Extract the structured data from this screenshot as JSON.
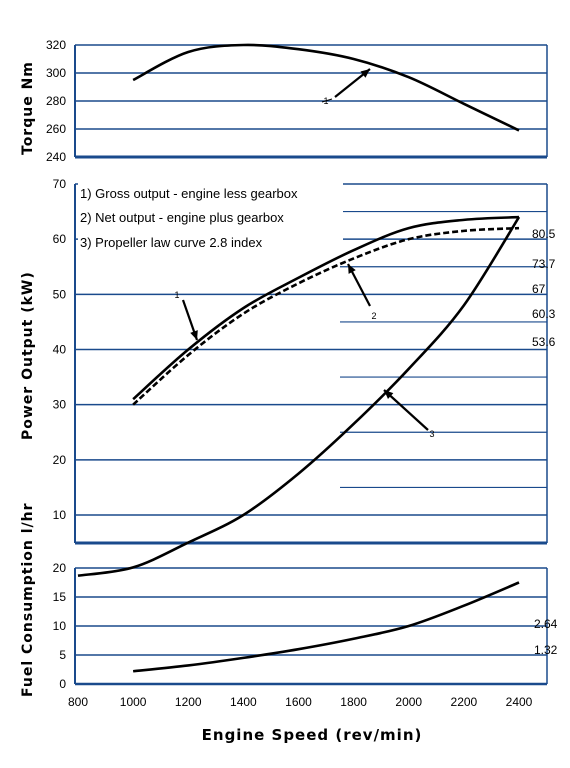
{
  "chart_data": [
    {
      "type": "line",
      "panel": "torque",
      "ylabel": "Torque Nm",
      "ylim": [
        240,
        320
      ],
      "yticks": [
        "320",
        "300",
        "280",
        "260",
        "240"
      ],
      "x": [
        1000,
        1200,
        1400,
        1600,
        1800,
        2000,
        2200,
        2400
      ],
      "series": [
        {
          "name": "1",
          "values": [
            295,
            315,
            320,
            317,
            310,
            297,
            278,
            259
          ]
        }
      ],
      "annotations": [
        "1"
      ]
    },
    {
      "type": "line",
      "panel": "power",
      "ylabel": "Power Output (kW)",
      "ylim": [
        0,
        70
      ],
      "yticks": [
        "70",
        "60",
        "50",
        "40",
        "30",
        "20",
        "10"
      ],
      "legend": [
        "1) Gross output - engine less gearbox",
        "2) Net output - engine plus gearbox",
        "3) Propeller law curve 2.8 index"
      ],
      "x": [
        1000,
        1200,
        1400,
        1600,
        1800,
        2000,
        2200,
        2400
      ],
      "series": [
        {
          "name": "1",
          "style": "solid",
          "values": [
            31,
            40,
            47.5,
            53,
            58,
            62,
            63.5,
            64
          ]
        },
        {
          "name": "2",
          "style": "dashed",
          "values": [
            30,
            39,
            46.5,
            52,
            56.5,
            60,
            61.5,
            62
          ]
        },
        {
          "name": "3",
          "style": "solid",
          "x": [
            800,
            1000,
            1200,
            1400,
            1600,
            1800,
            2000,
            2200,
            2400
          ],
          "values": [
            -1,
            0.5,
            5,
            10,
            17.5,
            26.5,
            36.5,
            48,
            64
          ]
        }
      ],
      "annotations": [
        "1",
        "2",
        "3"
      ],
      "side_labels": [
        "80.5",
        "73.7",
        "67",
        "60.3",
        "53.6"
      ]
    },
    {
      "type": "line",
      "panel": "fuel",
      "ylabel": "Fuel Consumption l/hr",
      "ylim": [
        0,
        20
      ],
      "yticks": [
        "20",
        "15",
        "10",
        "5",
        "0"
      ],
      "x": [
        1000,
        1200,
        1400,
        1600,
        1800,
        2000,
        2200,
        2400
      ],
      "series": [
        {
          "name": "fuel",
          "values": [
            2.2,
            3.2,
            4.5,
            6.0,
            7.8,
            10.0,
            13.5,
            17.5
          ]
        }
      ],
      "side_labels": [
        "2.64",
        "1.32"
      ],
      "xlabel": "Engine Speed (rev/min)",
      "xticks": [
        "800",
        "1000",
        "1200",
        "1400",
        "1600",
        "1800",
        "2000",
        "2200",
        "2400"
      ]
    }
  ],
  "colors": {
    "grid": "#1a4a8c",
    "curve": "#000000"
  }
}
